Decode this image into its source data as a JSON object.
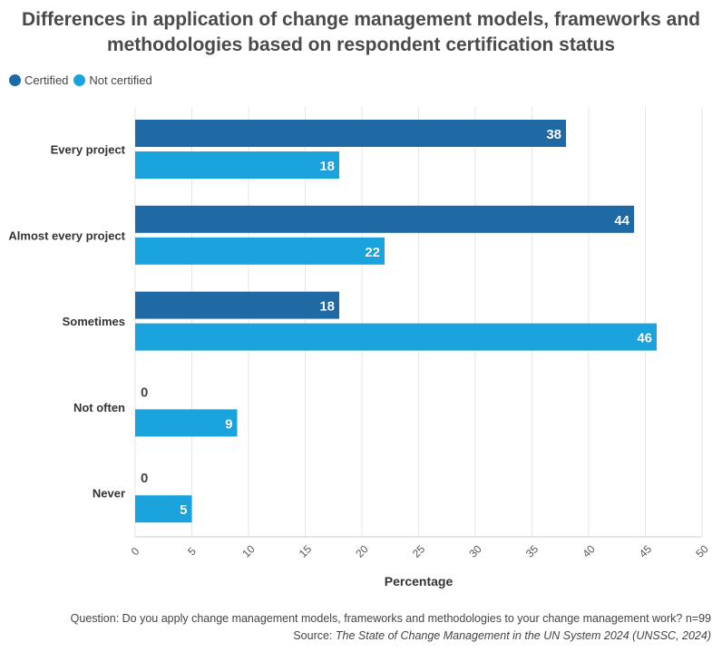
{
  "chart_data": {
    "type": "bar",
    "orientation": "horizontal",
    "title_lines": [
      "Differences in application of change management models, frameworks and",
      "methodologies based on respondent certification status"
    ],
    "categories": [
      "Every project",
      "Almost every project",
      "Sometimes",
      "Not often",
      "Never"
    ],
    "series": [
      {
        "name": "Certified",
        "color": "#1f6aa5",
        "values": [
          38,
          44,
          18,
          0,
          0
        ]
      },
      {
        "name": "Not certified",
        "color": "#1ba3dd",
        "values": [
          18,
          22,
          46,
          9,
          5
        ]
      }
    ],
    "xlabel": "Percentage",
    "xlim": [
      0,
      50
    ],
    "xticks": [
      "0",
      "5",
      "10",
      "15",
      "20",
      "25",
      "30",
      "35",
      "40",
      "45",
      "50"
    ],
    "grid": true,
    "legend_position": "top-left"
  },
  "footer": {
    "question": "Question: Do you apply change management models, frameworks and methodologies to your change management work? n=99",
    "source_prefix": "Source: ",
    "source_title": "The State of Change Management in the UN System 2024 (UNSSC, 2024)"
  }
}
